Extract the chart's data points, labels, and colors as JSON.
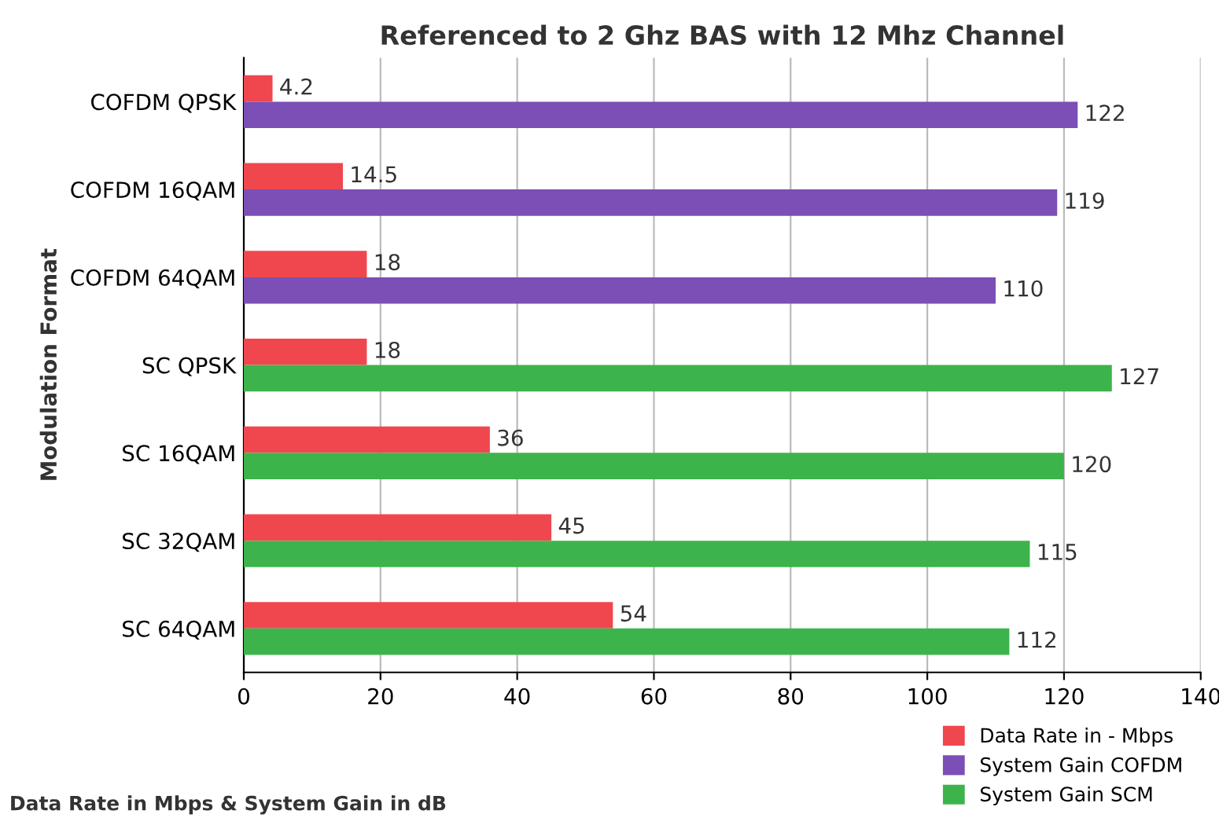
{
  "chart_data": {
    "type": "bar",
    "orientation": "horizontal",
    "title": "Referenced to 2 Ghz BAS with 12 Mhz Channel",
    "xlabel": "Data Rate in Mbps & System Gain in dB",
    "ylabel": "Modulation Format",
    "categories": [
      "COFDM QPSK",
      "COFDM 16QAM",
      "COFDM 64QAM",
      "SC QPSK",
      "SC 16QAM",
      "SC 32QAM",
      "SC 64QAM"
    ],
    "series": [
      {
        "name": "Data Rate in - Mbps",
        "color": "#f0474f",
        "values": [
          4.2,
          14.5,
          18,
          18,
          36,
          45,
          54
        ]
      },
      {
        "name": "System Gain COFDM",
        "color": "#7b4fb5",
        "values": [
          122,
          119,
          110,
          null,
          null,
          null,
          null
        ]
      },
      {
        "name": "System Gain SCM",
        "color": "#3cb44b",
        "values": [
          null,
          null,
          null,
          127,
          120,
          115,
          112
        ]
      }
    ],
    "xlim": [
      0,
      140
    ],
    "xticks": [
      0,
      20,
      40,
      60,
      80,
      100,
      120,
      140
    ],
    "grid": "x",
    "legend": "bottom right",
    "data_labels": true
  }
}
